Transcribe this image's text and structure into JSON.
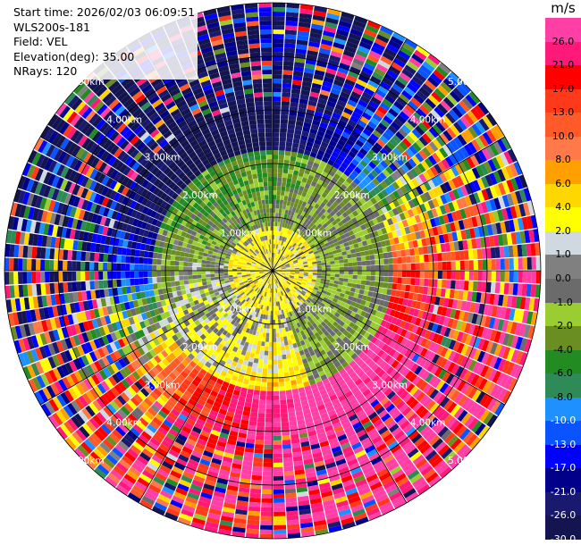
{
  "info": {
    "start_time": "Start time: 2026/02/03 06:09:51",
    "instrument": "WLS200s-181",
    "field": "Field: VEL",
    "elevation": "Elevation(deg): 35.00",
    "nrays": "NRays: 120"
  },
  "colorbar": {
    "unit": "m/s",
    "entries": [
      {
        "label": "26.0",
        "color": "#ff3fa5"
      },
      {
        "label": "21.0",
        "color": "#ff1a7a"
      },
      {
        "label": "17.0",
        "color": "#ff0000"
      },
      {
        "label": "13.0",
        "color": "#ff3a1a"
      },
      {
        "label": "10.0",
        "color": "#ff5a28"
      },
      {
        "label": "8.0",
        "color": "#ff7a48"
      },
      {
        "label": "6.0",
        "color": "#ffa000"
      },
      {
        "label": "4.0",
        "color": "#ffd700"
      },
      {
        "label": "2.0",
        "color": "#ffff00"
      },
      {
        "label": "1.0",
        "color": "#d0d8e0"
      },
      {
        "label": "0.0",
        "color": "#808080"
      },
      {
        "label": "-1.0",
        "color": "#6b6b6b"
      },
      {
        "label": "-2.0",
        "color": "#9acd32"
      },
      {
        "label": "-4.0",
        "color": "#6b8e23"
      },
      {
        "label": "-6.0",
        "color": "#228b22"
      },
      {
        "label": "-8.0",
        "color": "#2e8b57"
      },
      {
        "label": "-10.0",
        "color": "#1e90ff"
      },
      {
        "label": "-13.0",
        "color": "#0a54ff"
      },
      {
        "label": "-17.0",
        "color": "#0000ff"
      },
      {
        "label": "-21.0",
        "color": "#00008b"
      },
      {
        "label": "-26.0",
        "color": "#191970"
      },
      {
        "label": "-30.0",
        "color": "#141450"
      }
    ]
  },
  "range_rings": [
    "1.00km",
    "2.00km",
    "3.00km",
    "4.00km",
    "5.00km"
  ],
  "field": {
    "nrays": 120,
    "ngates": 60,
    "max_range_km": 5.0
  }
}
